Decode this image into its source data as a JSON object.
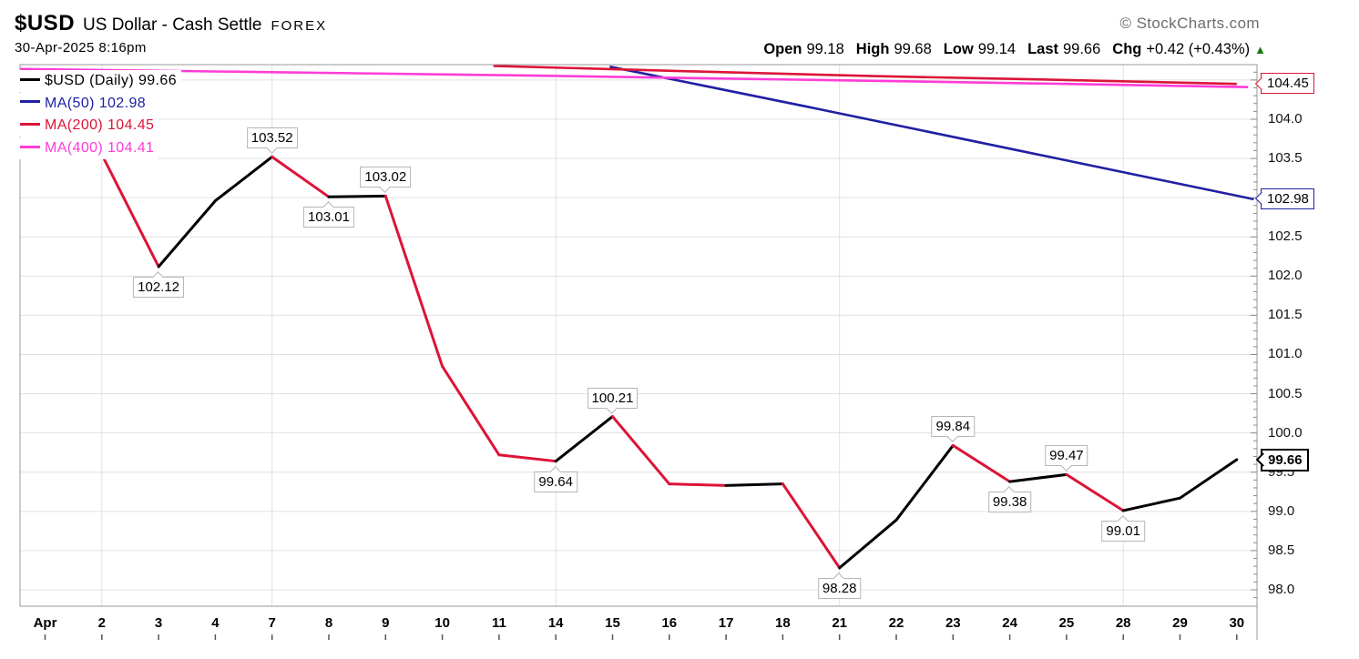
{
  "header": {
    "symbol": "$USD",
    "title": "US Dollar - Cash Settle",
    "exchange": "FOREX",
    "datetime": "30-Apr-2025 8:16pm",
    "copyright": "© StockCharts.com",
    "quote": {
      "items": [
        {
          "label": "Open",
          "value": "99.18"
        },
        {
          "label": "High",
          "value": "99.68"
        },
        {
          "label": "Low",
          "value": "99.14"
        },
        {
          "label": "Last",
          "value": "99.66"
        },
        {
          "label": "Chg",
          "value": "+0.42 (+0.43%)"
        }
      ],
      "direction_icon": "up-triangle-icon",
      "direction_color": "#117a11"
    }
  },
  "legend": {
    "items": [
      {
        "label": "$USD (Daily) 99.66",
        "color": "#000000"
      },
      {
        "label": "MA(50) 102.98",
        "color": "#2020a2"
      },
      {
        "label": "MA(200) 104.45",
        "color": "#dc1438"
      },
      {
        "label": "MA(400) 104.41",
        "color": "#ff3cd7"
      }
    ]
  },
  "colors": {
    "price_up": "#000000",
    "price_down": "#dc1438",
    "ma50": "#2020a2",
    "ma200": "#dc1438",
    "ma400": "#ff3cd7",
    "grid": "#e0e0e0",
    "frame": "#999999",
    "change_positive": "#117a11"
  },
  "chart_data": {
    "type": "line",
    "title": "$USD US Dollar - Cash Settle (Daily)",
    "xlabel": "",
    "ylabel": "",
    "ylim": [
      97.93,
      104.73
    ],
    "grid": {
      "horizontal_step": 0.5,
      "vertical_at_category_indices": [
        1,
        4,
        9,
        14,
        19
      ]
    },
    "x_categories": [
      "Apr",
      "2",
      "3",
      "4",
      "7",
      "8",
      "9",
      "10",
      "11",
      "14",
      "15",
      "16",
      "17",
      "18",
      "21",
      "22",
      "23",
      "24",
      "25",
      "28",
      "29",
      "30"
    ],
    "y_ticks": [
      "104.0",
      "103.5",
      "103.0",
      "102.5",
      "102.0",
      "101.5",
      "101.0",
      "100.5",
      "100.0",
      "99.5",
      "99.0",
      "98.5",
      "98.0"
    ],
    "series": [
      {
        "name": "$USD (Daily)",
        "style": "two-color-line",
        "up_color": "#000000",
        "down_color": "#dc1438",
        "last": 99.66,
        "values": [
          null,
          103.55,
          102.12,
          102.96,
          103.52,
          103.01,
          103.02,
          100.85,
          99.72,
          99.64,
          100.21,
          99.35,
          99.33,
          99.35,
          98.28,
          98.89,
          99.84,
          99.38,
          99.47,
          99.01,
          99.17,
          99.66
        ]
      },
      {
        "name": "MA(50)",
        "style": "line",
        "color": "#2020a2",
        "last": 102.98,
        "points": [
          {
            "d": 9.95,
            "v": 104.67
          },
          {
            "d": 13.5,
            "v": 104.15
          },
          {
            "d": 17.5,
            "v": 103.55
          },
          {
            "d": 21.3,
            "v": 102.98
          }
        ]
      },
      {
        "name": "MA(200)",
        "style": "line",
        "color": "#dc1438",
        "last": 104.45,
        "points": [
          {
            "d": 7.9,
            "v": 104.68
          },
          {
            "d": 11.4,
            "v": 104.61
          },
          {
            "d": 14.6,
            "v": 104.55
          },
          {
            "d": 18.0,
            "v": 104.5
          },
          {
            "d": 21.0,
            "v": 104.45
          }
        ]
      },
      {
        "name": "MA(400)",
        "style": "line",
        "color": "#ff3cd7",
        "last": 104.41,
        "points": [
          {
            "d": -0.44,
            "v": 104.64
          },
          {
            "d": 4.0,
            "v": 104.6
          },
          {
            "d": 8.2,
            "v": 104.56
          },
          {
            "d": 14.6,
            "v": 104.49
          },
          {
            "d": 18.0,
            "v": 104.45
          },
          {
            "d": 21.2,
            "v": 104.41
          }
        ]
      }
    ],
    "point_labels": [
      {
        "i": 2,
        "text": "102.12",
        "pos": "below"
      },
      {
        "i": 4,
        "text": "103.52",
        "pos": "above"
      },
      {
        "i": 5,
        "text": "103.01",
        "pos": "below"
      },
      {
        "i": 6,
        "text": "103.02",
        "pos": "above"
      },
      {
        "i": 9,
        "text": "99.64",
        "pos": "below"
      },
      {
        "i": 10,
        "text": "100.21",
        "pos": "above"
      },
      {
        "i": 14,
        "text": "98.28",
        "pos": "below"
      },
      {
        "i": 16,
        "text": "99.84",
        "pos": "above"
      },
      {
        "i": 17,
        "text": "99.38",
        "pos": "below"
      },
      {
        "i": 18,
        "text": "99.47",
        "pos": "above"
      },
      {
        "i": 19,
        "text": "99.01",
        "pos": "below"
      }
    ],
    "axis_callouts": [
      {
        "text": "104.45",
        "value": 104.45,
        "color": "#dc1438",
        "bold": false
      },
      {
        "text": "102.98",
        "value": 102.98,
        "color": "#2020a2",
        "bold": false
      },
      {
        "text": "99.66",
        "value": 99.66,
        "color": "#000000",
        "bold": true
      }
    ]
  }
}
